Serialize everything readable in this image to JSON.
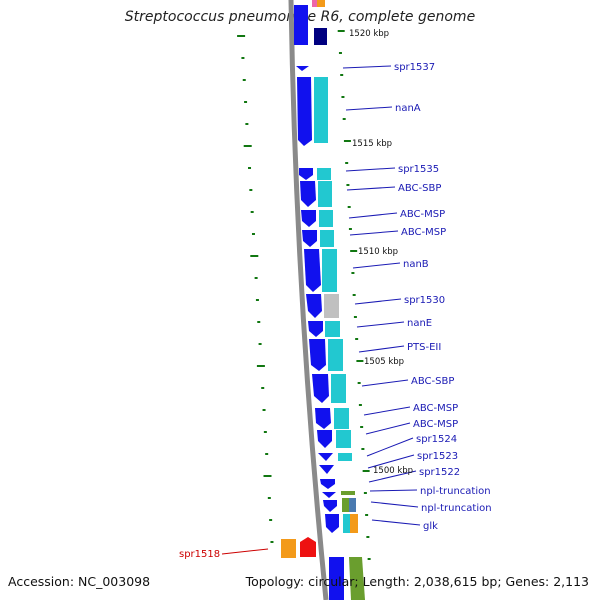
{
  "header": {
    "title": "Streptococcus pneumoniae R6, complete genome"
  },
  "footer": {
    "accession": "Accession: NC_003098",
    "topology": "Topology: circular; Length: 2,038,615 bp; Genes: 2,113"
  },
  "position_labels": [
    "1520 kbp",
    "1515 kbp",
    "1510 kbp",
    "1505 kbp",
    "1500 kbp"
  ],
  "gene_labels": [
    "spr1537",
    "nanA",
    "spr1535",
    "ABC-SBP",
    "ABC-MSP",
    "ABC-MSP",
    "nanB",
    "spr1530",
    "nanE",
    "PTS-EII",
    "ABC-SBP",
    "ABC-MSP",
    "ABC-MSP",
    "spr1524",
    "spr1523",
    "spr1522",
    "npl-truncation",
    "npl-truncation",
    "glk",
    "spr1518"
  ],
  "colors": {
    "gene_blue": "#1111ee",
    "cog_cyan": "#22c8d0",
    "cog_gray": "#c0c0c0",
    "cog_olive": "#6a9e2e",
    "gene_orange": "#f39a1a",
    "gene_red": "#ee1111",
    "label_blue": "#1a1ab4",
    "label_red": "#cc0000",
    "tick_green": "#117711",
    "backbone": "#8a8a8a"
  }
}
